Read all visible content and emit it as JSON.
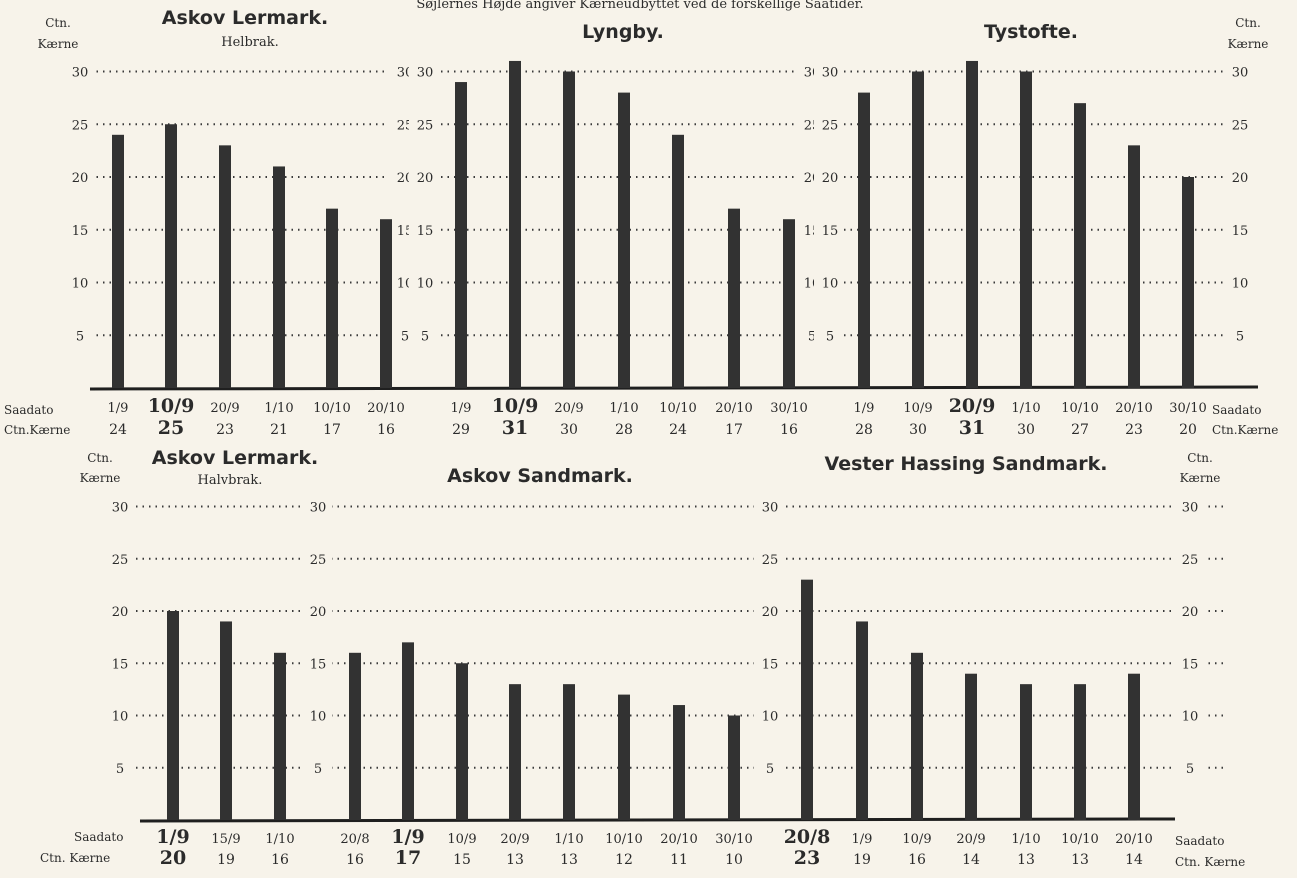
{
  "header": {
    "caption": "Søjlernes Højde angiver Kærneudbyttet ved de forskellige Saatider."
  },
  "labels": {
    "ctn": "Ctn.",
    "kaerne": "Kærne",
    "saadato": "Saadato",
    "ctn_kaerne_top": "Ctn.Kærne",
    "ctn_kaerne_bottom": "Ctn. Kærne"
  },
  "colors": {
    "bar": "#323232",
    "paper": "#f7f3ea",
    "ink": "#2b2b2b"
  },
  "chart_data": [
    {
      "type": "bar",
      "title": "Askov Lermark.",
      "subtitle": "Helbrak.",
      "ylabel": "Ctn. Kærne",
      "xlabel": "Saadato",
      "ylim": [
        0,
        30
      ],
      "yticks": [
        5,
        10,
        15,
        20,
        25,
        30
      ],
      "categories": [
        "1/9",
        "10/9",
        "20/9",
        "1/10",
        "10/10",
        "20/10"
      ],
      "values": [
        24,
        25,
        23,
        21,
        17,
        16
      ],
      "highlight": 1
    },
    {
      "type": "bar",
      "title": "Lyngby.",
      "subtitle": "",
      "ylabel": "Ctn. Kærne",
      "xlabel": "Saadato",
      "ylim": [
        0,
        30
      ],
      "yticks": [
        5,
        10,
        15,
        20,
        25,
        30
      ],
      "categories": [
        "1/9",
        "10/9",
        "20/9",
        "1/10",
        "10/10",
        "20/10",
        "30/10"
      ],
      "values": [
        29,
        31,
        30,
        28,
        24,
        17,
        16
      ],
      "highlight": 1
    },
    {
      "type": "bar",
      "title": "Tystofte.",
      "subtitle": "",
      "ylabel": "Ctn. Kærne",
      "xlabel": "Saadato",
      "ylim": [
        0,
        30
      ],
      "yticks": [
        5,
        10,
        15,
        20,
        25,
        30
      ],
      "categories": [
        "1/9",
        "10/9",
        "20/9",
        "1/10",
        "10/10",
        "20/10",
        "30/10"
      ],
      "values": [
        28,
        30,
        31,
        30,
        27,
        23,
        20
      ],
      "highlight": 2
    },
    {
      "type": "bar",
      "title": "Askov Lermark.",
      "subtitle": "Halvbrak.",
      "ylabel": "Ctn. Kærne",
      "xlabel": "Saadato",
      "ylim": [
        0,
        30
      ],
      "yticks": [
        5,
        10,
        15,
        20,
        25,
        30
      ],
      "categories": [
        "1/9",
        "15/9",
        "1/10"
      ],
      "values": [
        20,
        19,
        16
      ],
      "highlight": 0
    },
    {
      "type": "bar",
      "title": "Askov Sandmark.",
      "subtitle": "",
      "ylabel": "Ctn. Kærne",
      "xlabel": "Saadato",
      "ylim": [
        0,
        30
      ],
      "yticks": [
        5,
        10,
        15,
        20,
        25,
        30
      ],
      "categories": [
        "20/8",
        "1/9",
        "10/9",
        "20/9",
        "1/10",
        "10/10",
        "20/10",
        "30/10"
      ],
      "values": [
        16,
        17,
        15,
        13,
        13,
        12,
        11,
        10
      ],
      "highlight": 1
    },
    {
      "type": "bar",
      "title": "Vester Hassing Sandmark.",
      "subtitle": "",
      "ylabel": "Ctn. Kærne",
      "xlabel": "Saadato",
      "ylim": [
        0,
        30
      ],
      "yticks": [
        5,
        10,
        15,
        20,
        25,
        30
      ],
      "categories": [
        "20/8",
        "1/9",
        "10/9",
        "20/9",
        "1/10",
        "10/10",
        "20/10"
      ],
      "values": [
        23,
        19,
        16,
        14,
        13,
        13,
        14
      ],
      "highlight": 0
    }
  ]
}
